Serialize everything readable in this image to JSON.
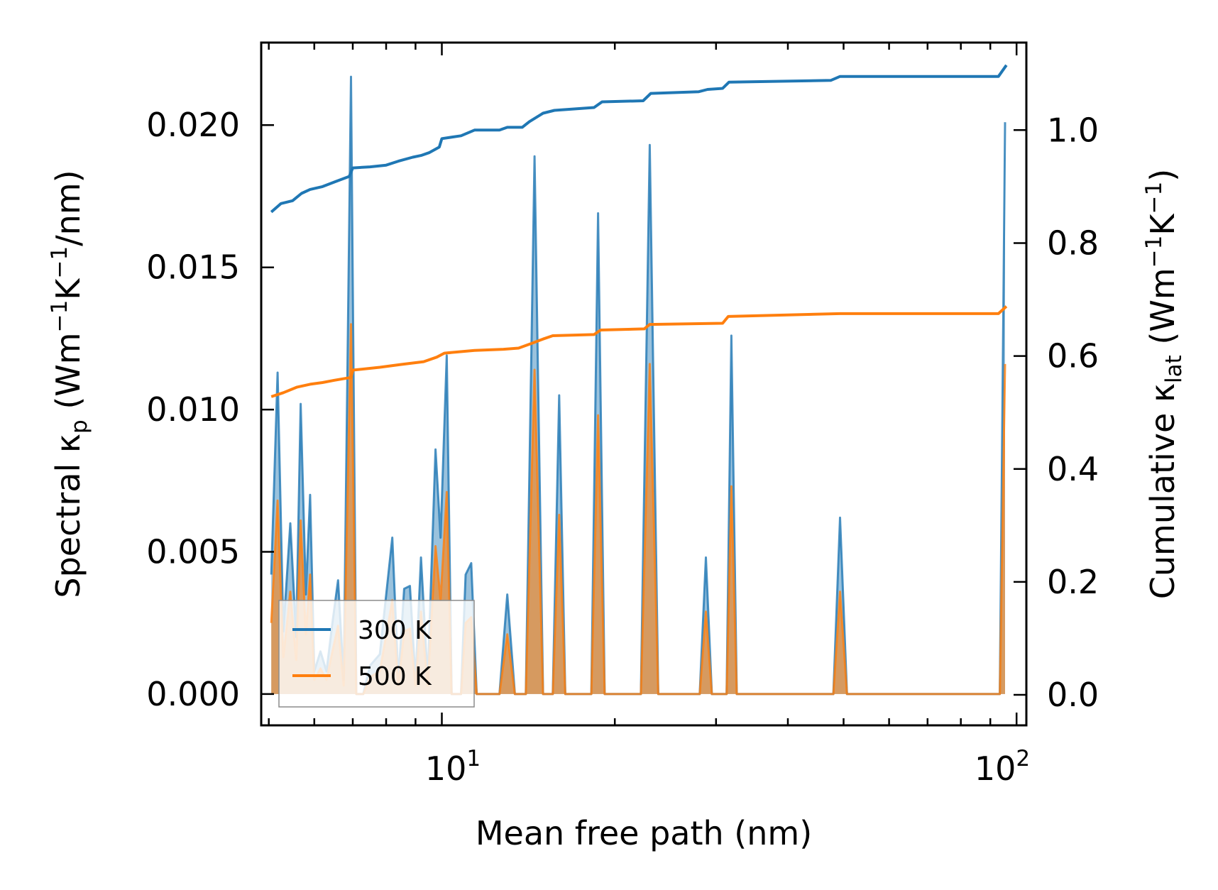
{
  "chart_data": {
    "type": "line",
    "xlabel": "Mean free path (nm)",
    "ylabel_left": "Spectral κₚ (Wm⁻¹K⁻¹/nm)",
    "ylabel_right": "Cumulative κₗₐₜ (Wm⁻¹K⁻¹)",
    "x_scale": "log",
    "xlim": [
      4.85,
      104
    ],
    "ylim_left": [
      -0.0011,
      0.0229
    ],
    "ylim_right": [
      -0.054,
      1.155
    ],
    "x_tick_labels": [
      "10¹",
      "10²"
    ],
    "y_left_tick_labels": [
      "0.000",
      "0.005",
      "0.010",
      "0.015",
      "0.020"
    ],
    "y_right_tick_labels": [
      "0.0",
      "0.2",
      "0.4",
      "0.6",
      "0.8",
      "1.0"
    ],
    "legend": [
      "300 K",
      "500 K"
    ],
    "legend_position": "lower-left",
    "colors": {
      "300 K": "#1f77b4",
      "500 K": "#ff7f0e"
    },
    "spectral": {
      "300 K": [
        [
          5.05,
          0.0042
        ],
        [
          5.18,
          0.0113
        ],
        [
          5.3,
          0.0022
        ],
        [
          5.45,
          0.006
        ],
        [
          5.58,
          0.002
        ],
        [
          5.68,
          0.0102
        ],
        [
          5.8,
          0.0035
        ],
        [
          5.9,
          0.007
        ],
        [
          6.0,
          0.0008
        ],
        [
          6.15,
          0.0015
        ],
        [
          6.3,
          0.0008
        ],
        [
          6.45,
          0.0025
        ],
        [
          6.6,
          0.004
        ],
        [
          6.75,
          0.0005
        ],
        [
          6.95,
          0.0217
        ],
        [
          7.1,
          0.0
        ],
        [
          7.3,
          0.0
        ],
        [
          7.5,
          0.001
        ],
        [
          7.8,
          0.0014
        ],
        [
          8.2,
          0.0055
        ],
        [
          8.4,
          0.0005
        ],
        [
          8.6,
          0.0037
        ],
        [
          8.8,
          0.0038
        ],
        [
          9.0,
          0.0005
        ],
        [
          9.2,
          0.0048
        ],
        [
          9.45,
          0.0005
        ],
        [
          9.75,
          0.0086
        ],
        [
          9.95,
          0.0055
        ],
        [
          10.2,
          0.0119
        ],
        [
          10.4,
          0.0
        ],
        [
          10.8,
          0.0
        ],
        [
          11.0,
          0.0042
        ],
        [
          11.25,
          0.0046
        ],
        [
          11.5,
          0.0
        ],
        [
          12.6,
          0.0
        ],
        [
          13.0,
          0.0035
        ],
        [
          13.4,
          0.0
        ],
        [
          14.0,
          0.0
        ],
        [
          14.5,
          0.0189
        ],
        [
          15.0,
          0.0
        ],
        [
          15.6,
          0.0
        ],
        [
          16.0,
          0.0105
        ],
        [
          16.4,
          0.0
        ],
        [
          18.2,
          0.0
        ],
        [
          18.7,
          0.0169
        ],
        [
          19.2,
          0.0
        ],
        [
          22.2,
          0.0
        ],
        [
          23.0,
          0.0193
        ],
        [
          23.8,
          0.0
        ],
        [
          28.1,
          0.0
        ],
        [
          28.8,
          0.0048
        ],
        [
          29.5,
          0.0
        ],
        [
          31.3,
          0.0
        ],
        [
          31.9,
          0.0126
        ],
        [
          32.6,
          0.0
        ],
        [
          48.0,
          0.0
        ],
        [
          49.3,
          0.0062
        ],
        [
          50.7,
          0.0
        ],
        [
          93.5,
          0.0
        ],
        [
          95.5,
          0.0201
        ]
      ],
      "500 K": [
        [
          5.05,
          0.0025
        ],
        [
          5.18,
          0.0068
        ],
        [
          5.3,
          0.0013
        ],
        [
          5.45,
          0.0036
        ],
        [
          5.58,
          0.0012
        ],
        [
          5.68,
          0.0061
        ],
        [
          5.8,
          0.0021
        ],
        [
          5.9,
          0.0042
        ],
        [
          6.0,
          0.0005
        ],
        [
          6.15,
          0.0009
        ],
        [
          6.3,
          0.0005
        ],
        [
          6.45,
          0.0015
        ],
        [
          6.6,
          0.0024
        ],
        [
          6.75,
          0.0003
        ],
        [
          6.95,
          0.013
        ],
        [
          7.1,
          0.0
        ],
        [
          7.3,
          0.0
        ],
        [
          7.5,
          0.0006
        ],
        [
          7.8,
          0.0008
        ],
        [
          8.2,
          0.0033
        ],
        [
          8.4,
          0.0003
        ],
        [
          8.6,
          0.0022
        ],
        [
          8.8,
          0.0023
        ],
        [
          9.0,
          0.0003
        ],
        [
          9.2,
          0.0029
        ],
        [
          9.45,
          0.0003
        ],
        [
          9.75,
          0.0052
        ],
        [
          9.95,
          0.0033
        ],
        [
          10.2,
          0.0071
        ],
        [
          10.4,
          0.0
        ],
        [
          10.8,
          0.0
        ],
        [
          11.0,
          0.0025
        ],
        [
          11.25,
          0.0027
        ],
        [
          11.5,
          0.0
        ],
        [
          12.6,
          0.0
        ],
        [
          13.0,
          0.0021
        ],
        [
          13.4,
          0.0
        ],
        [
          14.0,
          0.0
        ],
        [
          14.5,
          0.0114
        ],
        [
          15.0,
          0.0
        ],
        [
          15.6,
          0.0
        ],
        [
          16.0,
          0.0063
        ],
        [
          16.4,
          0.0
        ],
        [
          18.2,
          0.0
        ],
        [
          18.7,
          0.0098
        ],
        [
          19.2,
          0.0
        ],
        [
          22.2,
          0.0
        ],
        [
          23.0,
          0.0116
        ],
        [
          23.8,
          0.0
        ],
        [
          28.1,
          0.0
        ],
        [
          28.8,
          0.0029
        ],
        [
          29.5,
          0.0
        ],
        [
          31.3,
          0.0
        ],
        [
          31.9,
          0.0073
        ],
        [
          32.6,
          0.0
        ],
        [
          48.0,
          0.0
        ],
        [
          49.3,
          0.0036
        ],
        [
          50.7,
          0.0
        ],
        [
          93.5,
          0.0
        ],
        [
          95.5,
          0.0116
        ]
      ]
    },
    "cumulative": {
      "300 K": [
        [
          5.05,
          0.855
        ],
        [
          5.25,
          0.87
        ],
        [
          5.5,
          0.875
        ],
        [
          5.7,
          0.888
        ],
        [
          5.9,
          0.895
        ],
        [
          6.2,
          0.9
        ],
        [
          6.5,
          0.908
        ],
        [
          6.9,
          0.918
        ],
        [
          7.0,
          0.933
        ],
        [
          7.5,
          0.935
        ],
        [
          8.0,
          0.938
        ],
        [
          8.4,
          0.945
        ],
        [
          8.9,
          0.952
        ],
        [
          9.2,
          0.955
        ],
        [
          9.5,
          0.96
        ],
        [
          9.9,
          0.97
        ],
        [
          10.0,
          0.985
        ],
        [
          10.8,
          0.99
        ],
        [
          11.4,
          1.0
        ],
        [
          12.6,
          1.0
        ],
        [
          13.0,
          1.005
        ],
        [
          13.8,
          1.005
        ],
        [
          14.2,
          1.015
        ],
        [
          15.0,
          1.03
        ],
        [
          15.7,
          1.035
        ],
        [
          18.4,
          1.04
        ],
        [
          19.0,
          1.05
        ],
        [
          22.4,
          1.052
        ],
        [
          23.1,
          1.065
        ],
        [
          28.0,
          1.068
        ],
        [
          29.0,
          1.072
        ],
        [
          30.8,
          1.074
        ],
        [
          31.6,
          1.085
        ],
        [
          47.5,
          1.088
        ],
        [
          49.3,
          1.095
        ],
        [
          93.0,
          1.095
        ],
        [
          96.0,
          1.115
        ]
      ],
      "500 K": [
        [
          5.05,
          0.528
        ],
        [
          5.3,
          0.535
        ],
        [
          5.6,
          0.545
        ],
        [
          5.9,
          0.55
        ],
        [
          6.2,
          0.553
        ],
        [
          6.5,
          0.557
        ],
        [
          6.95,
          0.562
        ],
        [
          7.0,
          0.575
        ],
        [
          7.8,
          0.58
        ],
        [
          8.5,
          0.585
        ],
        [
          9.3,
          0.59
        ],
        [
          9.8,
          0.598
        ],
        [
          10.1,
          0.605
        ],
        [
          11.4,
          0.61
        ],
        [
          12.8,
          0.612
        ],
        [
          13.6,
          0.614
        ],
        [
          14.3,
          0.622
        ],
        [
          15.0,
          0.63
        ],
        [
          15.6,
          0.636
        ],
        [
          18.4,
          0.638
        ],
        [
          18.9,
          0.646
        ],
        [
          22.5,
          0.648
        ],
        [
          23.0,
          0.656
        ],
        [
          30.8,
          0.658
        ],
        [
          31.5,
          0.67
        ],
        [
          49.3,
          0.675
        ],
        [
          93.0,
          0.675
        ],
        [
          96.0,
          0.688
        ]
      ]
    }
  }
}
